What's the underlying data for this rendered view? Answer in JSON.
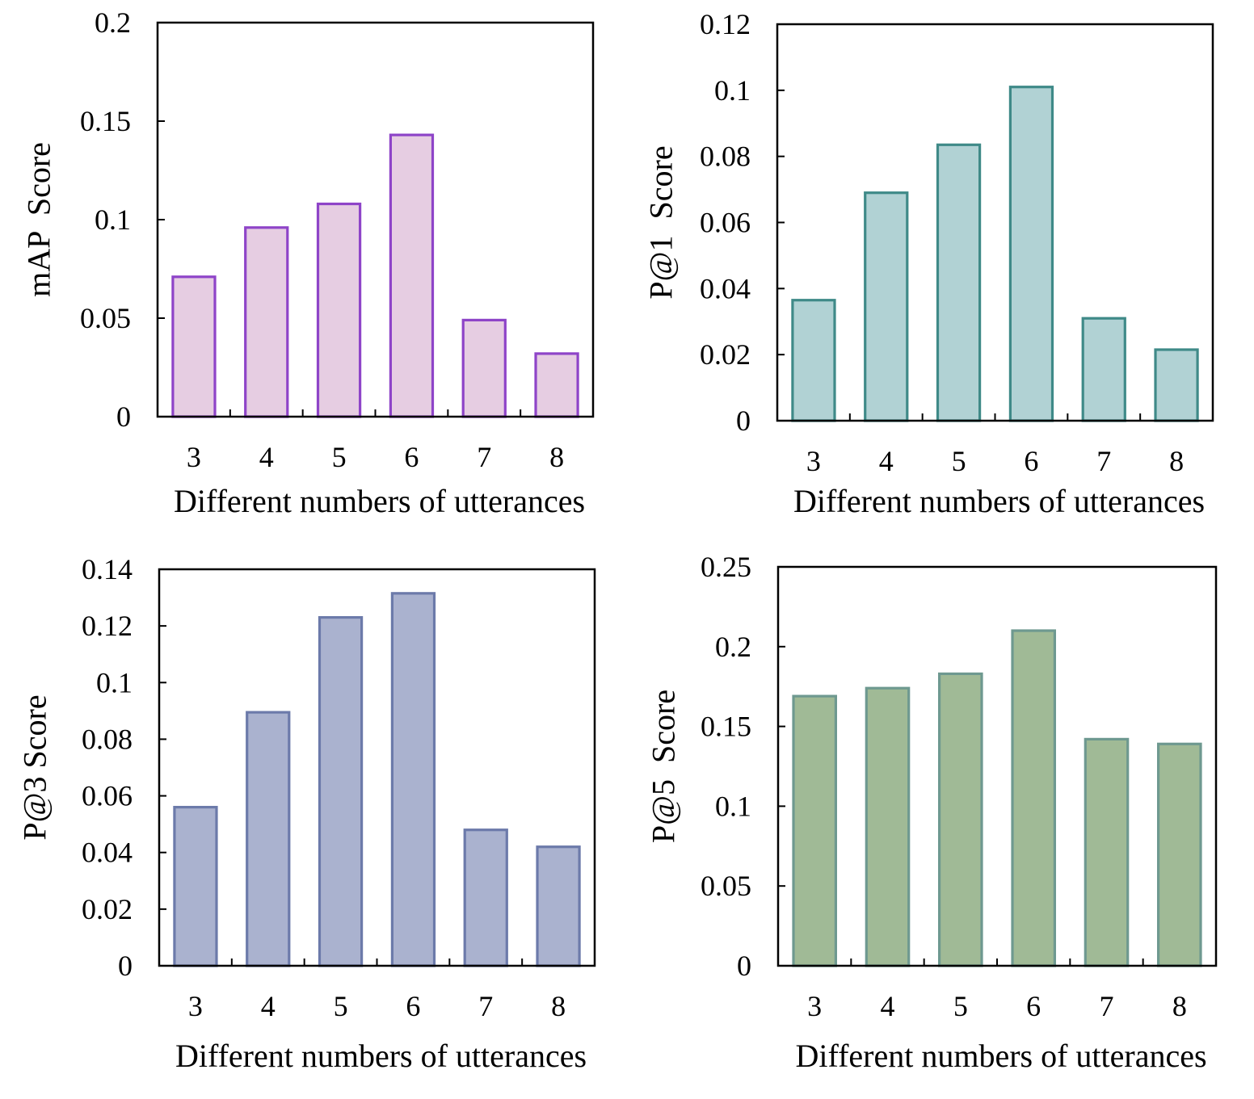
{
  "chart_data": [
    {
      "type": "bar",
      "categories": [
        "3",
        "4",
        "5",
        "6",
        "7",
        "8"
      ],
      "values": [
        0.071,
        0.096,
        0.108,
        0.143,
        0.049,
        0.032
      ],
      "xlabel": "Different numbers of utterances",
      "ylabel": "mAP  Score",
      "ylim": [
        0,
        0.2
      ],
      "yticks": [
        0,
        0.05,
        0.1,
        0.15,
        0.2
      ],
      "ytick_labels": [
        "0",
        "0.05",
        "0.1",
        "0.15",
        "0.2"
      ],
      "grid": false,
      "fill_color": "#e6cde2",
      "edge_color": "#8e44c8"
    },
    {
      "type": "bar",
      "categories": [
        "3",
        "4",
        "5",
        "6",
        "7",
        "8"
      ],
      "values": [
        0.0365,
        0.069,
        0.0835,
        0.101,
        0.031,
        0.0215
      ],
      "xlabel": "Different numbers of utterances",
      "ylabel": "P@1  Score",
      "ylim": [
        0,
        0.12
      ],
      "yticks": [
        0,
        0.02,
        0.04,
        0.06,
        0.08,
        0.1,
        0.12
      ],
      "ytick_labels": [
        "0",
        "0.02",
        "0.04",
        "0.06",
        "0.08",
        "0.1",
        "0.12"
      ],
      "grid": false,
      "fill_color": "#b1d2d4",
      "edge_color": "#3f8a88"
    },
    {
      "type": "bar",
      "categories": [
        "3",
        "4",
        "5",
        "6",
        "7",
        "8"
      ],
      "values": [
        0.056,
        0.0895,
        0.123,
        0.1315,
        0.048,
        0.042
      ],
      "xlabel": "Different numbers of utterances",
      "ylabel": "P@3 Score",
      "ylim": [
        0,
        0.14
      ],
      "yticks": [
        0,
        0.02,
        0.04,
        0.06,
        0.08,
        0.1,
        0.12,
        0.14
      ],
      "ytick_labels": [
        "0",
        "0.02",
        "0.04",
        "0.06",
        "0.08",
        "0.1",
        "0.12",
        "0.14"
      ],
      "grid": false,
      "fill_color": "#aab2cf",
      "edge_color": "#6c7aaa"
    },
    {
      "type": "bar",
      "categories": [
        "3",
        "4",
        "5",
        "6",
        "7",
        "8"
      ],
      "values": [
        0.169,
        0.174,
        0.183,
        0.21,
        0.142,
        0.139
      ],
      "xlabel": "Different numbers of utterances",
      "ylabel": "P@5  Score",
      "ylim": [
        0,
        0.25
      ],
      "yticks": [
        0,
        0.05,
        0.1,
        0.15,
        0.2,
        0.25
      ],
      "ytick_labels": [
        "0",
        "0.05",
        "0.1",
        "0.15",
        "0.2",
        "0.25"
      ],
      "grid": false,
      "fill_color": "#a0ba96",
      "edge_color": "#6e9990"
    }
  ]
}
